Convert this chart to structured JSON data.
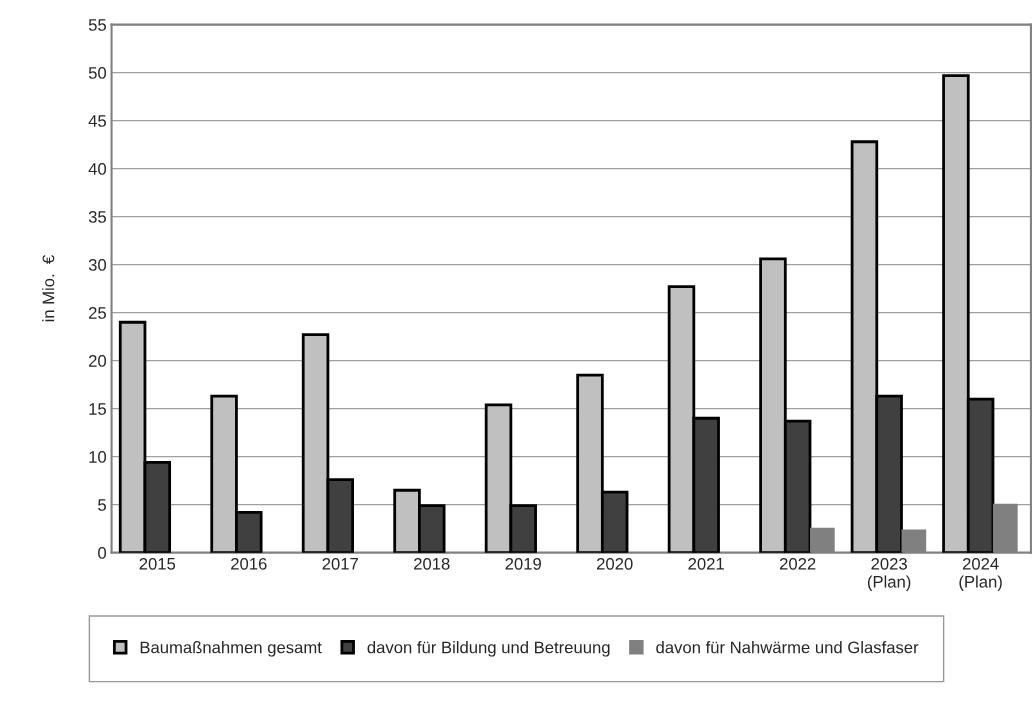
{
  "chart_data": {
    "type": "bar",
    "ylabel": "in Mio.  €",
    "categories": [
      "2015",
      "2016",
      "2017",
      "2018",
      "2019",
      "2020",
      "2021",
      "2022",
      "2023\n(Plan)",
      "2024\n(Plan)"
    ],
    "series": [
      {
        "name": "Baumaßnahmen gesamt",
        "color": "#c0c0c0",
        "values": [
          24.0,
          16.3,
          22.7,
          6.5,
          15.4,
          18.5,
          27.7,
          30.6,
          42.8,
          49.7
        ]
      },
      {
        "name": "davon für Bildung und Betreuung",
        "color": "#404040",
        "values": [
          9.4,
          4.2,
          7.6,
          4.9,
          4.9,
          6.3,
          14.0,
          13.7,
          16.3,
          16.0
        ]
      },
      {
        "name": "davon für Nahwärme und Glasfaser",
        "color": "#808080",
        "values": [
          0,
          0,
          0,
          0,
          0,
          0,
          0,
          2.6,
          2.4,
          5.1
        ]
      }
    ],
    "ylim": [
      0,
      55
    ],
    "yticks": [
      0,
      5,
      10,
      15,
      20,
      25,
      30,
      35,
      40,
      45,
      50,
      55
    ],
    "grid": "y",
    "legend": "bottom"
  }
}
